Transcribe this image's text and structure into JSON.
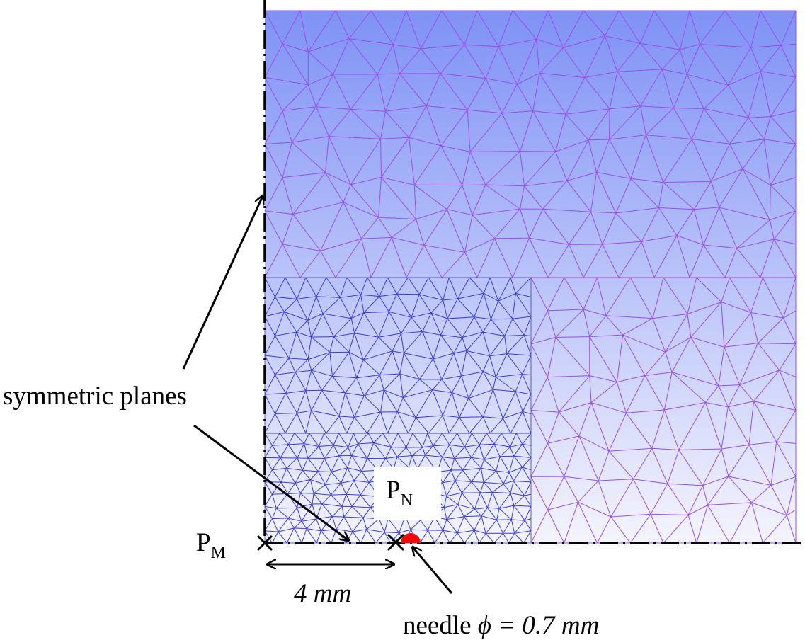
{
  "labels": {
    "symmetric_planes": "symmetric planes",
    "point_m": "P",
    "point_m_sub": "M",
    "point_n": "P",
    "point_n_sub": "N",
    "distance": "4 mm",
    "needle_prefix": "needle ",
    "needle_symbol": "ϕ",
    "needle_value": " = 0.7 mm"
  },
  "colors": {
    "mesh_top": "#7f92f5",
    "mesh_bottom": "#f4f4fe",
    "mesh_line_coarse": "#9a4df0",
    "mesh_line_fine": "#3b3bdc",
    "needle": "#ff0000",
    "annotation": "#000000"
  }
}
